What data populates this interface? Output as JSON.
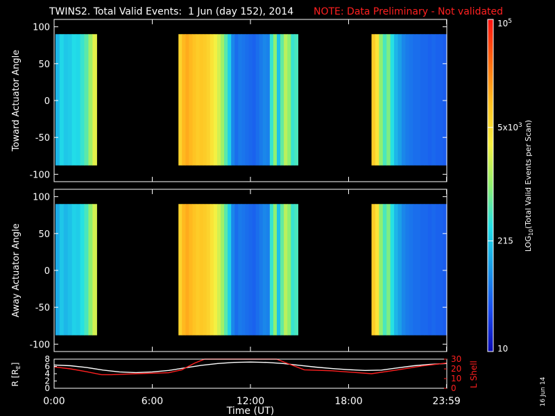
{
  "header": {
    "title": "TWINS2. Total Valid Events:  1 Jun (day 152), 2014",
    "note": "NOTE: Data Preliminary - Not validated"
  },
  "side_date": "16 Jun 14",
  "colors": {
    "background": "#000000",
    "axis": "#ffffff",
    "note": "#ff2020",
    "r_line": "#ffffff",
    "lshell_line": "#ff2020",
    "colormap": [
      "#0a0ab4",
      "#1a4cf0",
      "#1a9ae8",
      "#22e0e8",
      "#90f070",
      "#f8f040",
      "#ffc020",
      "#ff6a10",
      "#ff1010"
    ]
  },
  "chart_data": [
    {
      "type": "heatmap",
      "panel": "toward",
      "ylabel": "Toward Actuator Angle",
      "ylim": [
        -110,
        110
      ],
      "yticks": [
        100,
        50,
        0,
        -50,
        -100
      ],
      "xlim": [
        0,
        24
      ],
      "angle_range": [
        -88,
        90
      ],
      "segments": [
        {
          "start": 0.08,
          "end": 2.6,
          "level": [
            0.3,
            0.36,
            0.33,
            0.34,
            0.37,
            0.36,
            0.4,
            0.44,
            0.52,
            0.6
          ]
        },
        {
          "start": 7.6,
          "end": 14.9,
          "level": [
            0.7,
            0.76,
            0.78,
            0.76,
            0.74,
            0.72,
            0.73,
            0.72,
            0.7,
            0.66,
            0.62,
            0.58,
            0.52,
            0.44,
            0.35,
            0.22,
            0.18,
            0.2,
            0.19,
            0.18,
            0.17,
            0.16,
            0.18,
            0.2,
            0.22,
            0.21,
            0.4,
            0.5,
            0.32,
            0.45,
            0.55,
            0.5,
            0.4,
            0.42
          ]
        },
        {
          "start": 19.4,
          "end": 24.0,
          "level": [
            0.72,
            0.66,
            0.5,
            0.42,
            0.48,
            0.38,
            0.3,
            0.26,
            0.22,
            0.2,
            0.19,
            0.18,
            0.18,
            0.17,
            0.17,
            0.16,
            0.17,
            0.16,
            0.16,
            0.15
          ]
        }
      ]
    },
    {
      "type": "heatmap",
      "panel": "away",
      "ylabel": "Away Actuator Angle",
      "ylim": [
        -110,
        110
      ],
      "yticks": [
        100,
        50,
        0,
        -50,
        -100
      ],
      "xlim": [
        0,
        24
      ],
      "angle_range": [
        -88,
        90
      ],
      "segments": [
        {
          "start": 0.08,
          "end": 2.6,
          "level": [
            0.28,
            0.33,
            0.3,
            0.32,
            0.35,
            0.34,
            0.38,
            0.42,
            0.5,
            0.58
          ]
        },
        {
          "start": 7.6,
          "end": 14.9,
          "level": [
            0.7,
            0.76,
            0.78,
            0.76,
            0.74,
            0.72,
            0.73,
            0.72,
            0.7,
            0.66,
            0.62,
            0.58,
            0.52,
            0.44,
            0.35,
            0.22,
            0.18,
            0.2,
            0.19,
            0.18,
            0.17,
            0.16,
            0.18,
            0.2,
            0.22,
            0.21,
            0.4,
            0.5,
            0.32,
            0.45,
            0.55,
            0.5,
            0.4,
            0.42
          ]
        },
        {
          "start": 19.4,
          "end": 24.0,
          "level": [
            0.72,
            0.66,
            0.5,
            0.42,
            0.48,
            0.38,
            0.3,
            0.26,
            0.22,
            0.2,
            0.19,
            0.18,
            0.18,
            0.17,
            0.17,
            0.16,
            0.17,
            0.16,
            0.16,
            0.15
          ]
        }
      ]
    },
    {
      "type": "line",
      "panel": "ephemeris",
      "xlabel": "Time (UT)",
      "xlim": [
        0,
        24
      ],
      "xticks": [
        0,
        6,
        12,
        18,
        23.983
      ],
      "xtick_labels": [
        "0:00",
        "6:00",
        "12:00",
        "18:00",
        "23:59"
      ],
      "left_axis": {
        "label": "R [R",
        "label_sub": "E",
        "label_end": "]",
        "ylim": [
          0,
          8
        ],
        "yticks": [
          0,
          2,
          4,
          6,
          8
        ]
      },
      "right_axis": {
        "label": "L Shell",
        "ylim": [
          0,
          30
        ],
        "yticks": [
          0,
          10,
          20,
          30
        ]
      },
      "series": [
        {
          "axis": "left",
          "x": [
            0,
            1,
            2,
            3,
            4,
            5,
            6,
            7,
            8,
            9,
            10,
            11,
            12,
            13,
            14,
            15,
            16,
            17,
            18,
            19,
            20,
            21,
            22,
            23,
            24
          ],
          "y": [
            6.4,
            6.2,
            5.7,
            5.0,
            4.5,
            4.3,
            4.5,
            4.9,
            5.6,
            6.3,
            6.8,
            7.1,
            7.2,
            7.1,
            6.8,
            6.3,
            5.8,
            5.4,
            5.1,
            4.9,
            5.0,
            5.6,
            6.2,
            6.6,
            6.8
          ]
        },
        {
          "axis": "right",
          "x": [
            0,
            1,
            2,
            2.9,
            3.5,
            5,
            7,
            7.8,
            8.6,
            9.2,
            13.6,
            14.2,
            15.3,
            17,
            19.4,
            21,
            22.5,
            24
          ],
          "y": [
            22,
            20,
            17,
            14,
            14,
            15,
            16,
            19,
            26,
            31,
            31,
            26,
            19,
            18,
            15,
            19,
            23,
            26
          ]
        }
      ]
    },
    {
      "type": "heatmap",
      "panel": "colorbar",
      "ylabel": "LOG",
      "ylabel_sub": "10",
      "ylabel_end": "(Total Valid Events per Scan)",
      "scale": "log",
      "range": [
        10,
        100000
      ],
      "ticks": [
        {
          "value": 10,
          "label": "10"
        },
        {
          "value": 215,
          "label": "215"
        },
        {
          "value": 5000,
          "label": "5x10",
          "sup": "3"
        },
        {
          "value": 100000,
          "label": "10",
          "sup": "5"
        }
      ]
    }
  ]
}
